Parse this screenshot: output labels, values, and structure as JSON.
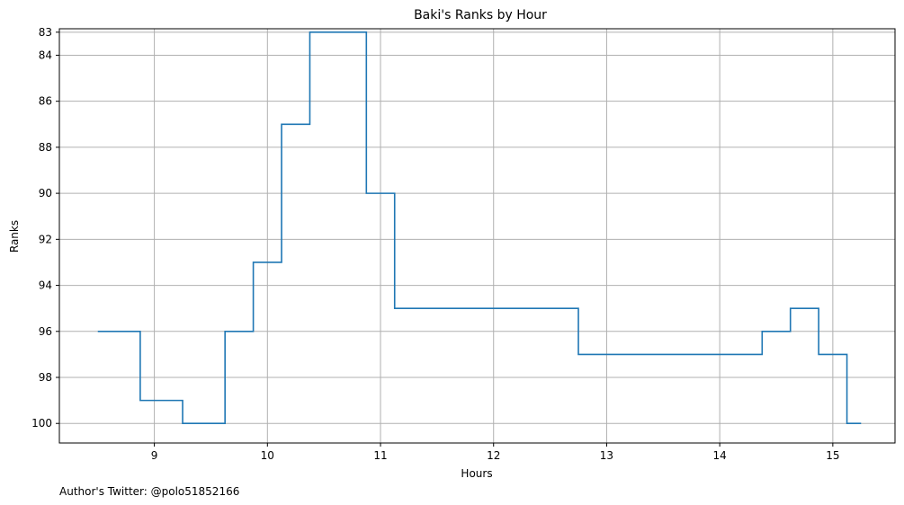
{
  "chart_data": {
    "type": "line",
    "drawstyle": "steps-post",
    "title": "Baki's Ranks by Hour",
    "xlabel": "Hours",
    "ylabel": "Ranks",
    "y_inverted": true,
    "xlim": [
      8.16,
      15.55
    ],
    "ylim": [
      100.85,
      82.85
    ],
    "xticks": [
      9,
      10,
      11,
      12,
      13,
      14,
      15
    ],
    "yticks": [
      83,
      84,
      86,
      88,
      90,
      92,
      94,
      96,
      98,
      100
    ],
    "grid": true,
    "color": "#1f77b4",
    "series": [
      {
        "x": [
          8.5,
          8.875,
          9.25,
          9.625,
          9.875,
          10.125,
          10.375,
          10.875,
          11.125,
          12.75,
          14.375,
          14.625,
          14.875,
          15.125,
          15.25
        ],
        "y": [
          96,
          99,
          100,
          96,
          93,
          87,
          83,
          90,
          95,
          97,
          96,
          95,
          97,
          100,
          100
        ]
      }
    ]
  },
  "footnote": "Author's Twitter: @polo51852166"
}
